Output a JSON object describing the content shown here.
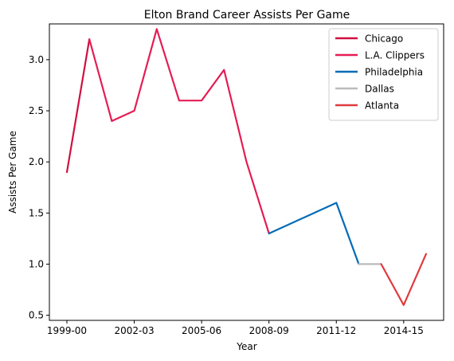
{
  "chart_data": {
    "type": "line",
    "title": "Elton Brand Career Assists Per Game",
    "xlabel": "Year",
    "ylabel": "Assists Per Game",
    "seasons": [
      "1999-00",
      "2000-01",
      "2001-02",
      "2002-03",
      "2003-04",
      "2004-05",
      "2005-06",
      "2006-07",
      "2007-08",
      "2008-09",
      "2009-10",
      "2010-11",
      "2011-12",
      "2012-13",
      "2013-14",
      "2014-15",
      "2015-16"
    ],
    "x_ticks": [
      "1999-00",
      "2002-03",
      "2005-06",
      "2008-09",
      "2011-12",
      "2014-15"
    ],
    "y_ticks": [
      "0.5",
      "1.0",
      "1.5",
      "2.0",
      "2.5",
      "3.0"
    ],
    "ylim": [
      0.45,
      3.35
    ],
    "legend_position": "top-right",
    "grid": false,
    "series": [
      {
        "name": "Chicago",
        "color": "#ce1141",
        "x_index": [
          0,
          1
        ],
        "values": [
          1.9,
          3.2
        ]
      },
      {
        "name": "L.A. Clippers",
        "color": "#e41e55",
        "x_index": [
          1,
          2,
          3,
          4,
          5,
          6,
          7,
          8,
          9
        ],
        "values": [
          3.2,
          2.4,
          2.5,
          3.3,
          2.6,
          2.6,
          2.9,
          2.0,
          1.3
        ]
      },
      {
        "name": "Philadelphia",
        "color": "#006bb6",
        "x_index": [
          9,
          12,
          13
        ],
        "values": [
          1.3,
          1.6,
          1.0
        ]
      },
      {
        "name": "Dallas",
        "color": "#bbbbbb",
        "x_index": [
          13,
          14
        ],
        "values": [
          1.0,
          1.0
        ]
      },
      {
        "name": "Atlanta",
        "color": "#e03a3e",
        "x_index": [
          14,
          15,
          16
        ],
        "values": [
          1.0,
          0.6,
          1.1
        ]
      }
    ]
  }
}
